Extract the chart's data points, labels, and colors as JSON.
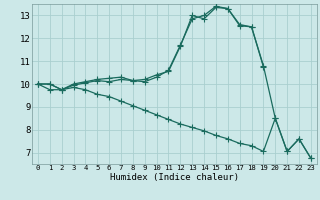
{
  "title": "",
  "xlabel": "Humidex (Indice chaleur)",
  "ylabel": "",
  "bg_color": "#cce8e8",
  "grid_color": "#aacfcf",
  "line_color": "#1a6b5e",
  "xlim": [
    -0.5,
    23.5
  ],
  "ylim": [
    6.5,
    13.5
  ],
  "xticks": [
    0,
    1,
    2,
    3,
    4,
    5,
    6,
    7,
    8,
    9,
    10,
    11,
    12,
    13,
    14,
    15,
    16,
    17,
    18,
    19,
    20,
    21,
    22,
    23
  ],
  "yticks": [
    7,
    8,
    9,
    10,
    11,
    12,
    13
  ],
  "line1_x": [
    0,
    1,
    2,
    3,
    4,
    5,
    6,
    7,
    8,
    9,
    10,
    11,
    12,
    13,
    14,
    15,
    16,
    17,
    18,
    19
  ],
  "line1_y": [
    10.0,
    10.0,
    9.75,
    10.0,
    10.1,
    10.2,
    10.25,
    10.3,
    10.15,
    10.2,
    10.4,
    10.55,
    11.65,
    13.0,
    12.85,
    13.35,
    13.3,
    12.6,
    12.5,
    10.75
  ],
  "line2_x": [
    0,
    1,
    2,
    3,
    4,
    5,
    6,
    7,
    8,
    9,
    10,
    11,
    12,
    13,
    14,
    15,
    16,
    17,
    18,
    19,
    20,
    21,
    22,
    23
  ],
  "line2_y": [
    10.0,
    10.0,
    9.75,
    9.95,
    10.05,
    10.15,
    10.1,
    10.2,
    10.15,
    10.1,
    10.3,
    10.6,
    11.7,
    12.85,
    13.0,
    13.4,
    13.3,
    12.55,
    12.5,
    10.8,
    8.5,
    7.05,
    7.6,
    6.75
  ],
  "line3_x": [
    0,
    1,
    2,
    3,
    4,
    5,
    6,
    7,
    8,
    9,
    10,
    11,
    12,
    13,
    14,
    15,
    16,
    17,
    18,
    19,
    20,
    21,
    22,
    23
  ],
  "line3_y": [
    10.0,
    9.75,
    9.75,
    9.85,
    9.75,
    9.55,
    9.45,
    9.25,
    9.05,
    8.85,
    8.65,
    8.45,
    8.25,
    8.1,
    7.95,
    7.75,
    7.6,
    7.4,
    7.3,
    7.05,
    8.5,
    7.05,
    7.6,
    6.75
  ],
  "marker_size": 3.0,
  "lw": 0.9
}
